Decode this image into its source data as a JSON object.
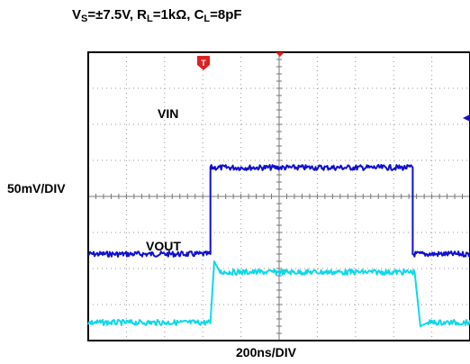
{
  "title": {
    "vs_label": "V",
    "vs_sub": "S",
    "vs_value": "=±7.5V, ",
    "rl_label": "R",
    "rl_sub": "L",
    "rl_value": "=1kΩ, ",
    "cl_label": "C",
    "cl_sub": "L",
    "cl_value": "=8pF"
  },
  "ylabel": "50mV/DIV",
  "xlabel": "200ns/DIV",
  "trigger_marker": "T",
  "colors": {
    "vin": "#1010d0",
    "vout": "#10d8e8",
    "grid": "#999999",
    "trigger": "#e02020"
  },
  "chart_data": {
    "type": "line",
    "xlabel": "200ns/DIV",
    "ylabel": "50mV/DIV",
    "x_divisions": 10,
    "y_divisions": 8,
    "grid": true,
    "series": [
      {
        "name": "VIN",
        "x_div": [
          0,
          3.2,
          3.2,
          8.5,
          8.5,
          10
        ],
        "y_div": [
          2.4,
          2.4,
          4.8,
          4.8,
          2.4,
          2.4
        ]
      },
      {
        "name": "VOUT",
        "x_div": [
          0,
          3.2,
          3.3,
          3.45,
          3.7,
          8.55,
          8.7,
          8.9,
          10
        ],
        "y_div": [
          0.5,
          0.5,
          2.2,
          1.9,
          1.9,
          1.9,
          0.4,
          0.5,
          0.5
        ]
      }
    ]
  }
}
